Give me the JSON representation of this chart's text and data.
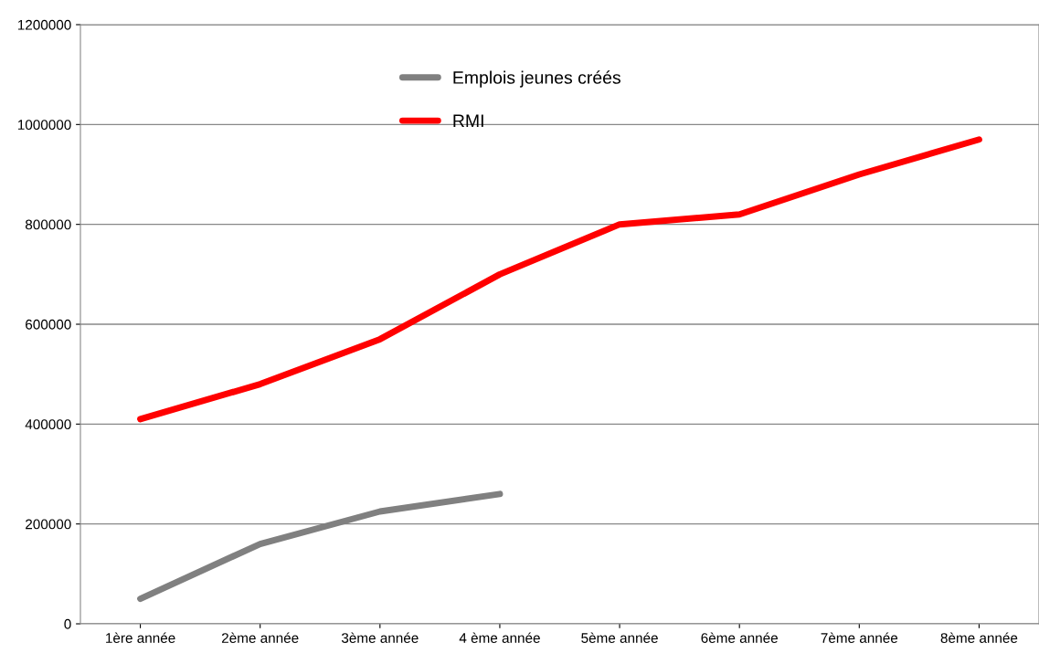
{
  "chart_data": {
    "type": "line",
    "categories": [
      "1ère année",
      "2ème année",
      "3ème année",
      "4 ème année",
      "5ème année",
      "6ème année",
      "7ème année",
      "8ème année"
    ],
    "series": [
      {
        "name": "Emplois jeunes créés",
        "color": "#808080",
        "values": [
          50000,
          160000,
          225000,
          260000,
          null,
          null,
          null,
          null
        ]
      },
      {
        "name": "RMI",
        "color": "#ff0000",
        "values": [
          410000,
          480000,
          570000,
          700000,
          800000,
          820000,
          900000,
          970000
        ]
      }
    ],
    "ylim": [
      0,
      1200000
    ],
    "yticks": [
      0,
      200000,
      400000,
      600000,
      800000,
      1000000,
      1200000
    ],
    "grid": "y",
    "legend": "top",
    "marker": "none",
    "line_style": "solid"
  }
}
